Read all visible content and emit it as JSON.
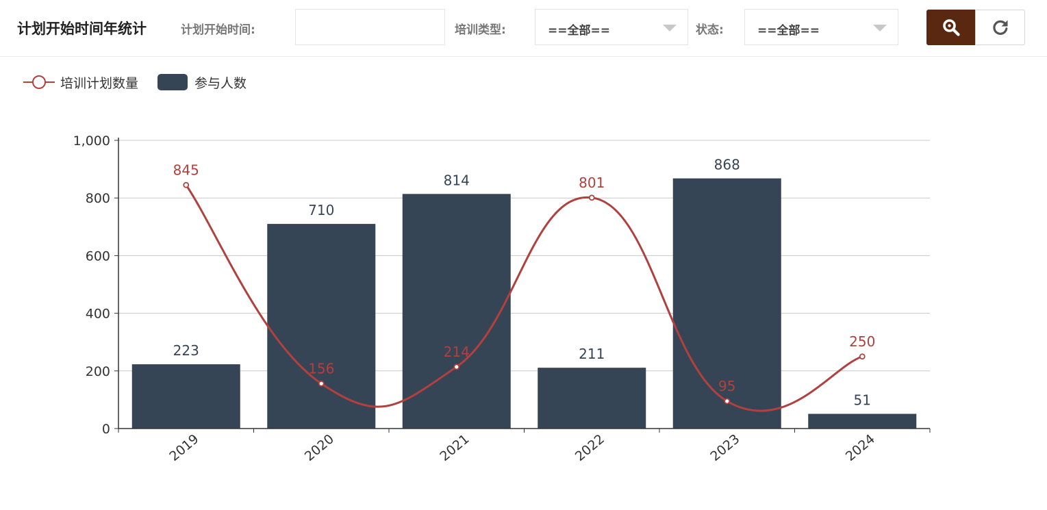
{
  "header": {
    "title": "计划开始时间年统计",
    "start_time_label": "计划开始时间:",
    "start_time_value": "",
    "type_label": "培训类型:",
    "type_value": "==全部==",
    "status_label": "状态:",
    "status_value": "==全部=="
  },
  "buttons": {
    "search_icon": "search-icon",
    "reset_icon": "refresh-icon"
  },
  "colors": {
    "bar": "#364555",
    "line": "#b0413e",
    "search_button": "#5a2710",
    "axis": "#333333",
    "grid": "#c8c8c8"
  },
  "chart_data": {
    "type": "bar",
    "categories": [
      "2019",
      "2020",
      "2021",
      "2022",
      "2023",
      "2024"
    ],
    "series": [
      {
        "name": "参与人数",
        "type": "bar",
        "values": [
          223,
          710,
          814,
          211,
          868,
          51
        ]
      },
      {
        "name": "培训计划数量",
        "type": "line",
        "smooth": true,
        "values": [
          845,
          156,
          214,
          801,
          95,
          250
        ]
      }
    ],
    "ylim": [
      0,
      1000
    ],
    "yticks": [
      "0",
      "200",
      "400",
      "600",
      "800",
      "1,000"
    ],
    "grid": true,
    "legend_position": "top-left"
  }
}
